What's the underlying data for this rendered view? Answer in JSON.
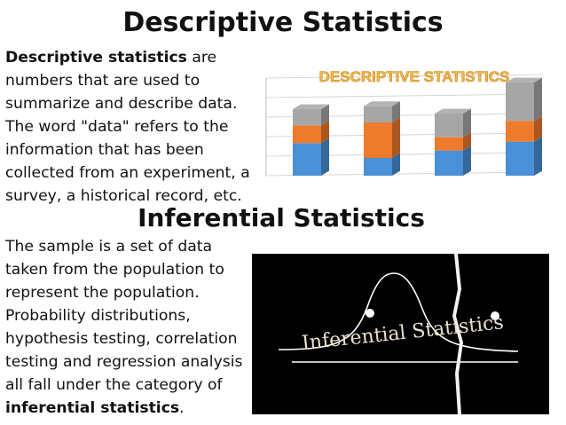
{
  "slide": {
    "title1": "Descriptive Statistics",
    "desc_bold": "Descriptive statistics",
    "desc_text": " are numbers that are used to summarize and describe data. The word \"data\" refers to the information that has been collected from an experiment, a survey, a historical record, etc.",
    "title2": "Inferential Statistics",
    "inf_text": "The sample is a set of data taken from the population to represent the population. Probability distributions, hypothesis testing, correlation testing and regression analysis all fall under the category of ",
    "inf_bold": "inferential statistics",
    "inf_end": "."
  },
  "chart_image": {
    "banner_text": "DESCRIPTIVE STATISTICS",
    "colors": {
      "blue": "#4a90d6",
      "orange": "#ee7a2c",
      "gray": "#a6a6a6",
      "banner": "#f0b84a"
    }
  },
  "chart_data": {
    "type": "bar",
    "stacked": true,
    "categories": [
      "",
      "",
      "",
      ""
    ],
    "series": [
      {
        "values": [
          1.1,
          0.6,
          0.85,
          1.15
        ]
      },
      {
        "values": [
          0.6,
          1.2,
          0.45,
          0.7
        ]
      },
      {
        "values": [
          0.55,
          0.55,
          0.8,
          1.3
        ]
      }
    ],
    "ylim": [
      0,
      3.3
    ],
    "grid": true
  },
  "photo": {
    "text": "Inferential Statistics",
    "colors": {
      "bg": "#000000",
      "text": "#e8e0d0",
      "curve": "#ffffff"
    }
  }
}
